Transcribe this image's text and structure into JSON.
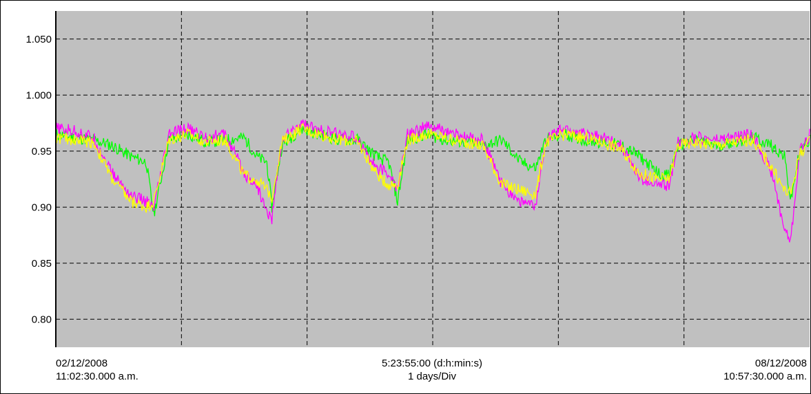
{
  "chart_data": {
    "type": "line",
    "title": "",
    "xlabel": "",
    "ylabel": "",
    "ylim": [
      0.775,
      1.075
    ],
    "yticks": [
      "0.80",
      "0.85",
      "0.90",
      "0.95",
      "1.000",
      "1.050"
    ],
    "ytick_values": [
      0.8,
      0.85,
      0.9,
      0.95,
      1.0,
      1.05
    ],
    "x_range_days": [
      0,
      6
    ],
    "grid": true,
    "plot_background": "#c0c0c0",
    "x_labels": {
      "start_date": "02/12/2008",
      "start_time": "11:02:30.000 a.m.",
      "span": "5:23:55:00 (d:h:min:s)",
      "division": "1 days/Div",
      "end_date": "08/12/2008",
      "end_time": "10:57:30.000 a.m."
    },
    "series": [
      {
        "color": "#00ff00",
        "x": [
          0,
          0.15,
          0.3,
          0.45,
          0.6,
          0.72,
          0.78,
          0.9,
          1.05,
          1.2,
          1.35,
          1.5,
          1.6,
          1.68,
          1.72,
          1.8,
          1.95,
          2.1,
          2.25,
          2.4,
          2.55,
          2.65,
          2.72,
          2.8,
          2.95,
          3.1,
          3.25,
          3.4,
          3.55,
          3.7,
          3.82,
          3.9,
          4.05,
          4.2,
          4.35,
          4.5,
          4.65,
          4.8,
          4.88,
          4.95,
          5.1,
          5.25,
          5.4,
          5.55,
          5.7,
          5.8,
          5.85,
          5.92,
          6.0
        ],
        "values": [
          0.965,
          0.962,
          0.96,
          0.955,
          0.945,
          0.94,
          0.893,
          0.96,
          0.965,
          0.958,
          0.96,
          0.962,
          0.945,
          0.94,
          0.9,
          0.955,
          0.97,
          0.965,
          0.96,
          0.96,
          0.945,
          0.94,
          0.905,
          0.96,
          0.965,
          0.96,
          0.958,
          0.955,
          0.96,
          0.94,
          0.935,
          0.96,
          0.965,
          0.96,
          0.958,
          0.955,
          0.945,
          0.93,
          0.928,
          0.955,
          0.96,
          0.955,
          0.958,
          0.962,
          0.955,
          0.945,
          0.905,
          0.95,
          0.96
        ]
      },
      {
        "color": "#ff00ff",
        "x": [
          0,
          0.15,
          0.3,
          0.45,
          0.6,
          0.72,
          0.78,
          0.9,
          1.05,
          1.2,
          1.35,
          1.5,
          1.6,
          1.68,
          1.72,
          1.8,
          1.95,
          2.1,
          2.25,
          2.4,
          2.55,
          2.65,
          2.72,
          2.8,
          2.95,
          3.1,
          3.25,
          3.4,
          3.55,
          3.7,
          3.82,
          3.9,
          4.05,
          4.2,
          4.35,
          4.5,
          4.65,
          4.8,
          4.88,
          4.95,
          5.1,
          5.25,
          5.4,
          5.55,
          5.7,
          5.8,
          5.85,
          5.92,
          6.0
        ],
        "values": [
          0.97,
          0.968,
          0.962,
          0.93,
          0.91,
          0.905,
          0.898,
          0.965,
          0.97,
          0.962,
          0.965,
          0.93,
          0.92,
          0.895,
          0.89,
          0.96,
          0.975,
          0.968,
          0.965,
          0.962,
          0.935,
          0.93,
          0.915,
          0.965,
          0.972,
          0.968,
          0.962,
          0.96,
          0.92,
          0.905,
          0.9,
          0.962,
          0.97,
          0.965,
          0.962,
          0.955,
          0.925,
          0.92,
          0.918,
          0.958,
          0.962,
          0.96,
          0.962,
          0.965,
          0.93,
          0.88,
          0.87,
          0.95,
          0.965
        ]
      },
      {
        "color": "#ffff00",
        "x": [
          0,
          0.15,
          0.3,
          0.45,
          0.6,
          0.72,
          0.78,
          0.9,
          1.05,
          1.2,
          1.35,
          1.5,
          1.6,
          1.68,
          1.72,
          1.8,
          1.95,
          2.1,
          2.25,
          2.4,
          2.55,
          2.65,
          2.72,
          2.8,
          2.95,
          3.1,
          3.25,
          3.4,
          3.55,
          3.7,
          3.82,
          3.9,
          4.05,
          4.2,
          4.35,
          4.5,
          4.65,
          4.8,
          4.88,
          4.95,
          5.1,
          5.25,
          5.4,
          5.55,
          5.7,
          5.8,
          5.85,
          5.92,
          6.0
        ],
        "values": [
          0.962,
          0.96,
          0.958,
          0.925,
          0.905,
          0.9,
          0.905,
          0.96,
          0.965,
          0.958,
          0.96,
          0.928,
          0.925,
          0.915,
          0.91,
          0.958,
          0.97,
          0.965,
          0.96,
          0.958,
          0.93,
          0.92,
          0.92,
          0.96,
          0.965,
          0.962,
          0.958,
          0.955,
          0.92,
          0.915,
          0.912,
          0.958,
          0.965,
          0.962,
          0.958,
          0.952,
          0.93,
          0.925,
          0.925,
          0.955,
          0.958,
          0.955,
          0.958,
          0.96,
          0.935,
          0.915,
          0.912,
          0.948,
          0.958
        ]
      }
    ]
  }
}
